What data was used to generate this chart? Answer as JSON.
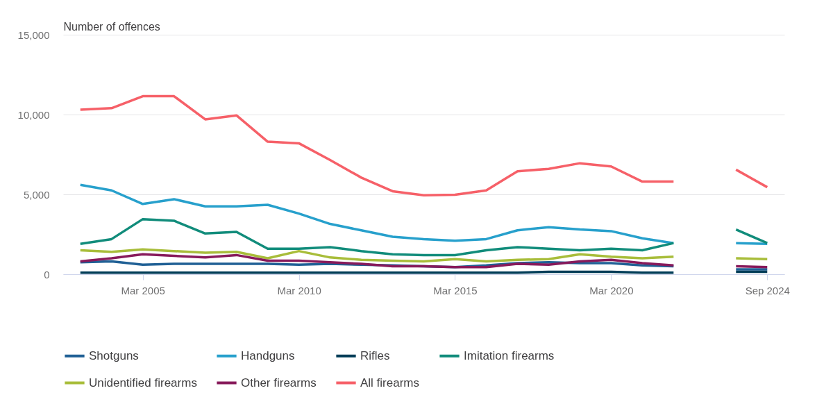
{
  "chart_data": {
    "type": "line",
    "ylabel": "Number of offences",
    "categories": [
      null,
      null,
      "Mar 2005",
      null,
      null,
      null,
      null,
      "Mar 2010",
      null,
      null,
      null,
      null,
      "Mar 2015",
      null,
      null,
      null,
      null,
      "Mar 2020",
      null,
      null,
      null,
      null,
      "Sep 2024"
    ],
    "ylim": [
      0,
      15000
    ],
    "yticks": [
      0,
      {
        "value": 5000,
        "label": "5,000"
      },
      {
        "value": 10000,
        "label": "10,000"
      },
      {
        "value": 15000,
        "label": "15,000"
      }
    ],
    "grid": "y",
    "legend": "bottom",
    "series": [
      {
        "name": "Shotguns",
        "color": "#206095",
        "values": [
          750,
          800,
          600,
          650,
          650,
          650,
          650,
          600,
          650,
          600,
          550,
          500,
          450,
          550,
          700,
          750,
          700,
          700,
          550,
          500,
          null,
          300,
          300
        ]
      },
      {
        "name": "Handguns",
        "color": "#27a0cc",
        "values": [
          5600,
          5250,
          4400,
          4700,
          4250,
          4250,
          4350,
          3800,
          3150,
          2750,
          2350,
          2200,
          2100,
          2200,
          2750,
          2950,
          2800,
          2700,
          2250,
          1950,
          null,
          1950,
          1900
        ]
      },
      {
        "name": "Rifles",
        "color": "#003c57",
        "values": [
          100,
          100,
          100,
          100,
          100,
          100,
          100,
          100,
          100,
          100,
          100,
          100,
          100,
          100,
          100,
          150,
          150,
          150,
          100,
          100,
          null,
          150,
          150
        ]
      },
      {
        "name": "Imitation firearms",
        "color": "#118c7b",
        "values": [
          1900,
          2200,
          3450,
          3350,
          2550,
          2650,
          1600,
          1600,
          1700,
          1450,
          1250,
          1200,
          1200,
          1500,
          1700,
          1600,
          1500,
          1600,
          1500,
          1950,
          null,
          2800,
          1950
        ]
      },
      {
        "name": "Unidentified firearms",
        "color": "#a8bd3a",
        "values": [
          1500,
          1400,
          1550,
          1450,
          1350,
          1400,
          1000,
          1450,
          1050,
          900,
          850,
          800,
          950,
          800,
          900,
          950,
          1250,
          1100,
          1000,
          1100,
          null,
          1000,
          950
        ]
      },
      {
        "name": "Other firearms",
        "color": "#871a5b",
        "values": [
          800,
          1000,
          1250,
          1150,
          1050,
          1200,
          850,
          850,
          750,
          650,
          500,
          500,
          450,
          450,
          650,
          600,
          800,
          900,
          700,
          550,
          null,
          500,
          450
        ]
      },
      {
        "name": "All firearms",
        "color": "#f66068",
        "values": [
          10300,
          10400,
          11150,
          11150,
          9700,
          9950,
          8300,
          8200,
          7150,
          6050,
          5200,
          4950,
          4980,
          5250,
          6450,
          6600,
          6950,
          6750,
          5800,
          5800,
          null,
          6550,
          5450
        ]
      }
    ]
  }
}
